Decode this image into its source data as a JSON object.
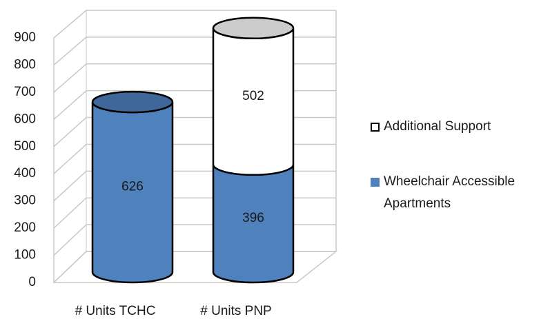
{
  "chart_data": {
    "type": "bar3d-cylinder-stacked",
    "categories": [
      "# Units TCHC",
      "# Units PNP"
    ],
    "series": [
      {
        "name": "Wheelchair Accessible Apartments",
        "color": "#4f81bd",
        "values": [
          626,
          396
        ]
      },
      {
        "name": "Additional Support",
        "color": "#ffffff",
        "values": [
          null,
          502
        ]
      }
    ],
    "ylim": [
      0,
      900
    ],
    "yticks": [
      0,
      100,
      200,
      300,
      400,
      500,
      600,
      700,
      800,
      900
    ],
    "grid": true
  }
}
